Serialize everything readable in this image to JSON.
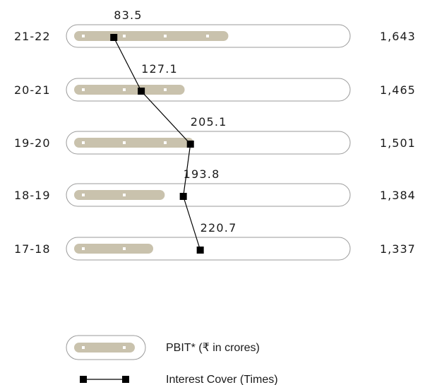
{
  "chart_data": {
    "type": "bar+line",
    "categories": [
      "21-22",
      "20-21",
      "19-20",
      "18-19",
      "17-18"
    ],
    "series": [
      {
        "name": "PBIT* (₹ in crores)",
        "type": "bar",
        "values": [
          1643,
          1465,
          1501,
          1384,
          1337
        ]
      },
      {
        "name": "Interest Cover (Times)",
        "type": "line",
        "values": [
          83.5,
          127.1,
          205.1,
          193.8,
          220.7
        ]
      }
    ],
    "value_labels": {
      "bar": [
        "1,643",
        "1,465",
        "1,501",
        "1,384",
        "1,337"
      ],
      "line": [
        "83.5",
        "127.1",
        "205.1",
        "193.8",
        "220.7"
      ]
    },
    "orientation": "horizontal",
    "grid": false,
    "legend": "bottom-center",
    "colors": {
      "bar": "#c9c2ad",
      "track_border": "#9a9a9a",
      "marker": "#000000",
      "line": "#000000",
      "dot": "#ffffff"
    }
  }
}
